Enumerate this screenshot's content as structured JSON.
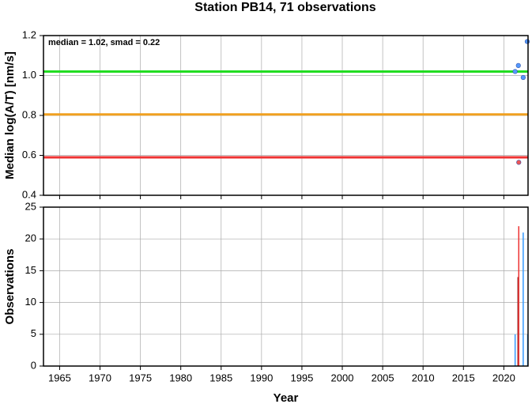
{
  "chart_data": [
    {
      "type": "scatter",
      "title": "Station PB14, 71 observations",
      "annotation": "median = 1.02, smad = 0.22",
      "ylabel": "Median log(A/T) [nm/s]",
      "xlim": [
        1963,
        2023
      ],
      "xticks": [
        1965,
        1970,
        1975,
        1980,
        1985,
        1990,
        1995,
        2000,
        2005,
        2010,
        2015,
        2020
      ],
      "ylim": [
        0.4,
        1.2
      ],
      "yticks": [
        0.4,
        0.6,
        0.8,
        {
          "value": 1.0,
          "label": "1.0"
        },
        1.2
      ],
      "grid": true,
      "hlines": [
        {
          "value": 1.02,
          "color": "#22dd22"
        },
        {
          "value": 0.805,
          "color": "#f0a020"
        },
        {
          "value": 0.59,
          "color": "#ee3333"
        }
      ],
      "x": [
        2021.4,
        2021.8,
        2022.4,
        2022.9,
        2021.85
      ],
      "values": [
        1.02,
        1.05,
        0.99,
        1.17,
        0.565
      ],
      "colors": [
        "#5599ff",
        "#5599ff",
        "#5599ff",
        "#5599ff",
        "#ee5555"
      ]
    },
    {
      "type": "bar",
      "xlabel": "Year",
      "ylabel": "Observations",
      "xlim": [
        1963,
        2023
      ],
      "xticks": [
        1965,
        1970,
        1975,
        1980,
        1985,
        1990,
        1995,
        2000,
        2005,
        2010,
        2015,
        2020
      ],
      "ylim": [
        0,
        25
      ],
      "yticks": [
        0,
        5,
        10,
        15,
        20,
        25
      ],
      "grid": true,
      "x": [
        2021.4,
        2021.75,
        2021.85,
        2022.4,
        2022.95
      ],
      "values": [
        5,
        14,
        22,
        21,
        5
      ],
      "colors": [
        "#3399ff",
        "#993333",
        "#ee3333",
        "#3399ff",
        "#3399ff"
      ]
    }
  ]
}
